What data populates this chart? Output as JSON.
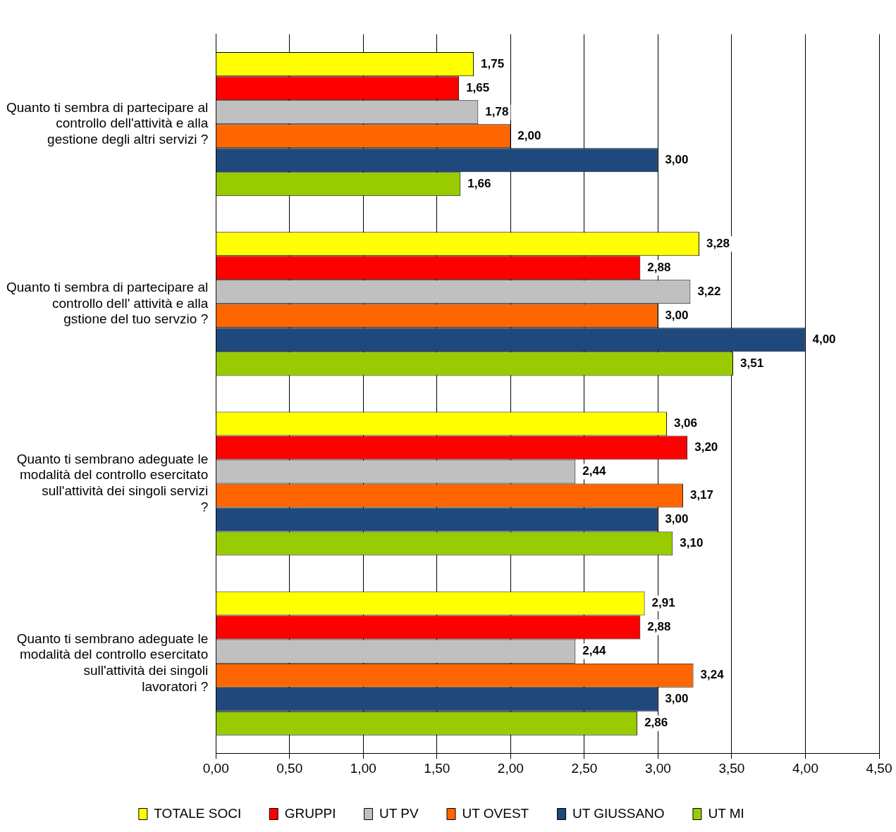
{
  "chart_data": {
    "type": "bar",
    "orientation": "horizontal",
    "categories": [
      "Quanto ti sembra di partecipare al controllo dell'attività e alla gestione degli altri servizi ?",
      "Quanto ti sembra di partecipare al controllo dell' attività e alla gstione del tuo servzio ?",
      "Quanto ti sembrano adeguate le modalità del controllo esercitato sull'attività dei singoli servizi ?",
      "Quanto ti sembrano adeguate le modalità del controllo esercitato sull'attività dei singoli lavoratori ?"
    ],
    "series": [
      {
        "name": "TOTALE SOCI",
        "color": "#ffff00",
        "values": [
          1.75,
          3.28,
          3.06,
          2.91
        ],
        "value_labels": [
          "1,75",
          "3,28",
          "3,06",
          "2,91"
        ]
      },
      {
        "name": "GRUPPI",
        "color": "#ff0000",
        "values": [
          1.65,
          2.88,
          3.2,
          2.88
        ],
        "value_labels": [
          "1,65",
          "2,88",
          "3,20",
          "2,88"
        ]
      },
      {
        "name": "UT PV",
        "color": "#c0c0c0",
        "values": [
          1.78,
          3.22,
          2.44,
          2.44
        ],
        "value_labels": [
          "1,78",
          "3,22",
          "2,44",
          "2,44"
        ]
      },
      {
        "name": "UT OVEST",
        "color": "#ff6600",
        "values": [
          2.0,
          3.0,
          3.17,
          3.24
        ],
        "value_labels": [
          "2,00",
          "3,00",
          "3,17",
          "3,24"
        ]
      },
      {
        "name": "UT GIUSSANO",
        "color": "#1f497d",
        "values": [
          3.0,
          4.0,
          3.0,
          3.0
        ],
        "value_labels": [
          "3,00",
          "4,00",
          "3,00",
          "3,00"
        ]
      },
      {
        "name": "UT MI",
        "color": "#99cc00",
        "values": [
          1.66,
          3.51,
          3.1,
          2.86
        ],
        "value_labels": [
          "1,66",
          "3,51",
          "3,10",
          "2,86"
        ]
      }
    ],
    "xlim": [
      0,
      4.5
    ],
    "xticks": [
      {
        "value": 0,
        "label": "0,00"
      },
      {
        "value": 0.5,
        "label": "0,50"
      },
      {
        "value": 1,
        "label": "1,00"
      },
      {
        "value": 1.5,
        "label": "1,50"
      },
      {
        "value": 2,
        "label": "2,00"
      },
      {
        "value": 2.5,
        "label": "2,50"
      },
      {
        "value": 3,
        "label": "3,00"
      },
      {
        "value": 3.5,
        "label": "3,50"
      },
      {
        "value": 4,
        "label": "4,00"
      },
      {
        "value": 4.5,
        "label": "4,50"
      }
    ],
    "grid": "x",
    "legend": "bottom"
  }
}
